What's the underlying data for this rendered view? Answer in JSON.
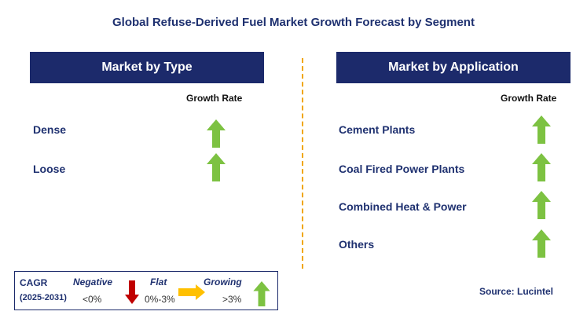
{
  "title": "Global Refuse-Derived Fuel Market Growth Forecast by Segment",
  "left_panel": {
    "header": "Market by Type",
    "column_label": "Growth Rate",
    "rows": [
      {
        "label": "Dense",
        "trend": "growing"
      },
      {
        "label": "Loose",
        "trend": "growing"
      }
    ]
  },
  "right_panel": {
    "header": "Market by Application",
    "column_label": "Growth Rate",
    "rows": [
      {
        "label": "Cement Plants",
        "trend": "growing"
      },
      {
        "label": "Coal Fired Power Plants",
        "trend": "growing"
      },
      {
        "label": "Combined Heat & Power",
        "trend": "growing"
      },
      {
        "label": "Others",
        "trend": "growing"
      }
    ]
  },
  "legend": {
    "cagr_label": "CAGR",
    "period": "(2025-2031)",
    "negative_label": "Negative",
    "negative_value": "<0%",
    "flat_label": "Flat",
    "flat_value": "0%-3%",
    "growing_label": "Growing",
    "growing_value": ">3%"
  },
  "source": "Source: Lucintel",
  "colors": {
    "header_bg": "#1c2a6b",
    "growing": "#7dc242",
    "negative": "#c00000",
    "flat": "#ffc000",
    "divider": "#f0a500"
  },
  "icons": {
    "growing": "green-up-arrow-icon",
    "negative": "red-down-arrow-icon",
    "flat": "yellow-right-arrow-icon"
  }
}
